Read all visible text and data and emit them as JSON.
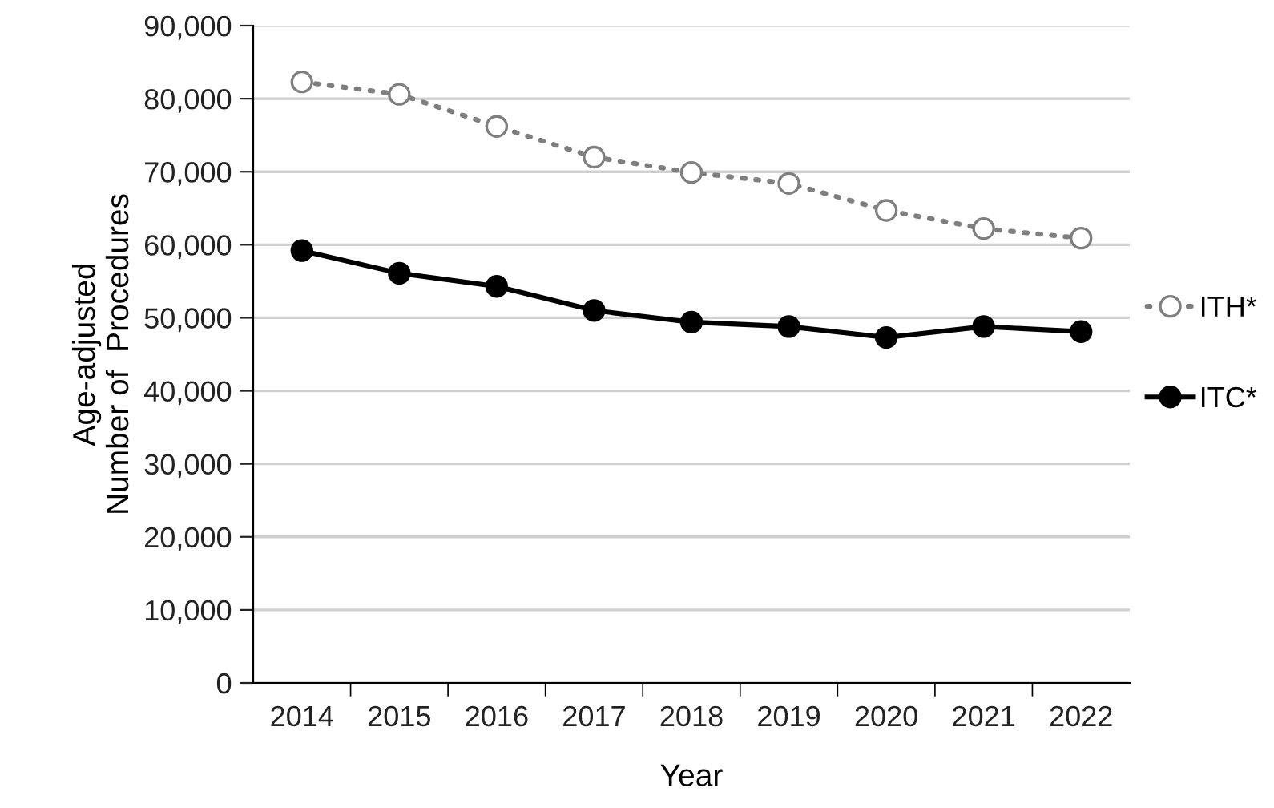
{
  "chart_data": {
    "type": "line",
    "xlabel": "Year",
    "ylabel": "Age-adjusted\nNumber of  Procedures",
    "categories": [
      "2014",
      "2015",
      "2016",
      "2017",
      "2018",
      "2019",
      "2020",
      "2021",
      "2022"
    ],
    "series": [
      {
        "name": "ITH*",
        "color": "#7f7f7f",
        "line_style": "dotted",
        "values": [
          82300,
          80600,
          76200,
          72000,
          69900,
          68400,
          64700,
          62200,
          60900
        ]
      },
      {
        "name": "ITC*",
        "color": "#000000",
        "line_style": "solid",
        "values": [
          59200,
          56100,
          54300,
          51000,
          49400,
          48800,
          47300,
          48800,
          48100
        ]
      }
    ],
    "marker": "circle",
    "ylim": [
      0,
      90000
    ],
    "yticks": [
      {
        "value": 0,
        "label": "0"
      },
      {
        "value": 10000,
        "label": "10,000"
      },
      {
        "value": 20000,
        "label": "20,000"
      },
      {
        "value": 30000,
        "label": "30,000"
      },
      {
        "value": 40000,
        "label": "40,000"
      },
      {
        "value": 50000,
        "label": "50,000"
      },
      {
        "value": 60000,
        "label": "60,000"
      },
      {
        "value": 70000,
        "label": "70,000"
      },
      {
        "value": 80000,
        "label": "80,000"
      },
      {
        "value": 90000,
        "label": "90,000"
      }
    ],
    "grid": "y",
    "legend": "right"
  }
}
